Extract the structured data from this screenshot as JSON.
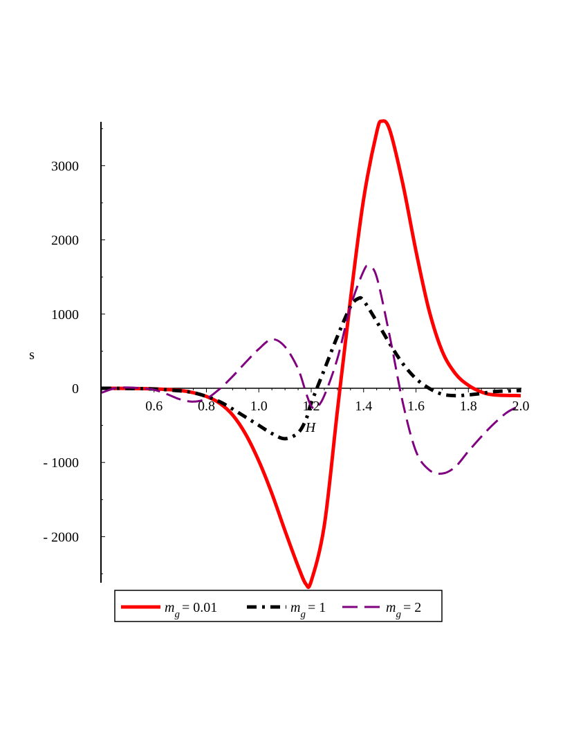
{
  "chart_data": {
    "type": "line",
    "xlabel": "H",
    "ylabel": "s",
    "xlim": [
      0.4,
      2.0
    ],
    "ylim": [
      -2650,
      3600
    ],
    "x_ticks": [
      {
        "v": 0.6,
        "label": "0.6"
      },
      {
        "v": 0.8,
        "label": "0.8"
      },
      {
        "v": 1.0,
        "label": "1.0"
      },
      {
        "v": 1.2,
        "label": "1.2"
      },
      {
        "v": 1.4,
        "label": "1.4"
      },
      {
        "v": 1.6,
        "label": "1.6"
      },
      {
        "v": 1.8,
        "label": "1.8"
      },
      {
        "v": 2.0,
        "label": "2.0"
      }
    ],
    "y_ticks": [
      {
        "v": 3000,
        "label": "3000"
      },
      {
        "v": 2000,
        "label": "2000"
      },
      {
        "v": 1000,
        "label": "1000"
      },
      {
        "v": 0,
        "label": "0"
      },
      {
        "v": -1000,
        "label": "- 1000"
      },
      {
        "v": -2000,
        "label": "- 2000"
      }
    ],
    "grid": false,
    "legend_position": "bottom",
    "series": [
      {
        "legend_sym": "m",
        "legend_sub": "g",
        "legend_value": "= 0.01",
        "color": "#ff0000",
        "style": "solid",
        "points": [
          [
            0.4,
            0
          ],
          [
            0.5,
            -2
          ],
          [
            0.6,
            -8
          ],
          [
            0.7,
            -30
          ],
          [
            0.75,
            -60
          ],
          [
            0.8,
            -110
          ],
          [
            0.85,
            -200
          ],
          [
            0.9,
            -360
          ],
          [
            0.95,
            -620
          ],
          [
            1.0,
            -980
          ],
          [
            1.05,
            -1420
          ],
          [
            1.1,
            -1920
          ],
          [
            1.15,
            -2400
          ],
          [
            1.18,
            -2640
          ],
          [
            1.2,
            -2600
          ],
          [
            1.25,
            -1850
          ],
          [
            1.3,
            -300
          ],
          [
            1.35,
            1200
          ],
          [
            1.4,
            2550
          ],
          [
            1.45,
            3450
          ],
          [
            1.47,
            3600
          ],
          [
            1.5,
            3480
          ],
          [
            1.55,
            2750
          ],
          [
            1.6,
            1850
          ],
          [
            1.65,
            1050
          ],
          [
            1.7,
            500
          ],
          [
            1.75,
            200
          ],
          [
            1.8,
            40
          ],
          [
            1.85,
            -50
          ],
          [
            1.9,
            -90
          ],
          [
            2.0,
            -100
          ]
        ]
      },
      {
        "legend_sym": "m",
        "legend_sub": "g",
        "legend_value": "= 1",
        "color": "#000000",
        "style": "dashdot",
        "points": [
          [
            0.4,
            0
          ],
          [
            0.5,
            -3
          ],
          [
            0.6,
            -10
          ],
          [
            0.7,
            -35
          ],
          [
            0.75,
            -60
          ],
          [
            0.8,
            -110
          ],
          [
            0.85,
            -180
          ],
          [
            0.9,
            -280
          ],
          [
            0.95,
            -390
          ],
          [
            1.0,
            -500
          ],
          [
            1.05,
            -610
          ],
          [
            1.1,
            -680
          ],
          [
            1.15,
            -600
          ],
          [
            1.18,
            -420
          ],
          [
            1.2,
            -200
          ],
          [
            1.25,
            250
          ],
          [
            1.3,
            700
          ],
          [
            1.35,
            1100
          ],
          [
            1.38,
            1210
          ],
          [
            1.4,
            1180
          ],
          [
            1.45,
            900
          ],
          [
            1.5,
            600
          ],
          [
            1.55,
            330
          ],
          [
            1.6,
            130
          ],
          [
            1.65,
            0
          ],
          [
            1.7,
            -80
          ],
          [
            1.75,
            -100
          ],
          [
            1.8,
            -90
          ],
          [
            1.85,
            -70
          ],
          [
            1.9,
            -45
          ],
          [
            2.0,
            -30
          ]
        ]
      },
      {
        "legend_sym": "m",
        "legend_sub": "g",
        "legend_value": "= 2",
        "color": "#800080",
        "style": "dash",
        "points": [
          [
            0.4,
            -60
          ],
          [
            0.45,
            0
          ],
          [
            0.5,
            10
          ],
          [
            0.55,
            0
          ],
          [
            0.6,
            -20
          ],
          [
            0.65,
            -80
          ],
          [
            0.7,
            -150
          ],
          [
            0.75,
            -180
          ],
          [
            0.8,
            -140
          ],
          [
            0.85,
            -10
          ],
          [
            0.9,
            160
          ],
          [
            0.95,
            350
          ],
          [
            1.0,
            530
          ],
          [
            1.05,
            660
          ],
          [
            1.1,
            560
          ],
          [
            1.15,
            260
          ],
          [
            1.18,
            -60
          ],
          [
            1.2,
            -240
          ],
          [
            1.22,
            -260
          ],
          [
            1.25,
            -100
          ],
          [
            1.3,
            400
          ],
          [
            1.35,
            1100
          ],
          [
            1.4,
            1580
          ],
          [
            1.42,
            1640
          ],
          [
            1.45,
            1500
          ],
          [
            1.5,
            700
          ],
          [
            1.55,
            -200
          ],
          [
            1.6,
            -850
          ],
          [
            1.65,
            -1100
          ],
          [
            1.7,
            -1150
          ],
          [
            1.75,
            -1060
          ],
          [
            1.8,
            -850
          ],
          [
            1.85,
            -650
          ],
          [
            1.9,
            -470
          ],
          [
            1.95,
            -320
          ],
          [
            2.0,
            -230
          ]
        ]
      }
    ]
  }
}
